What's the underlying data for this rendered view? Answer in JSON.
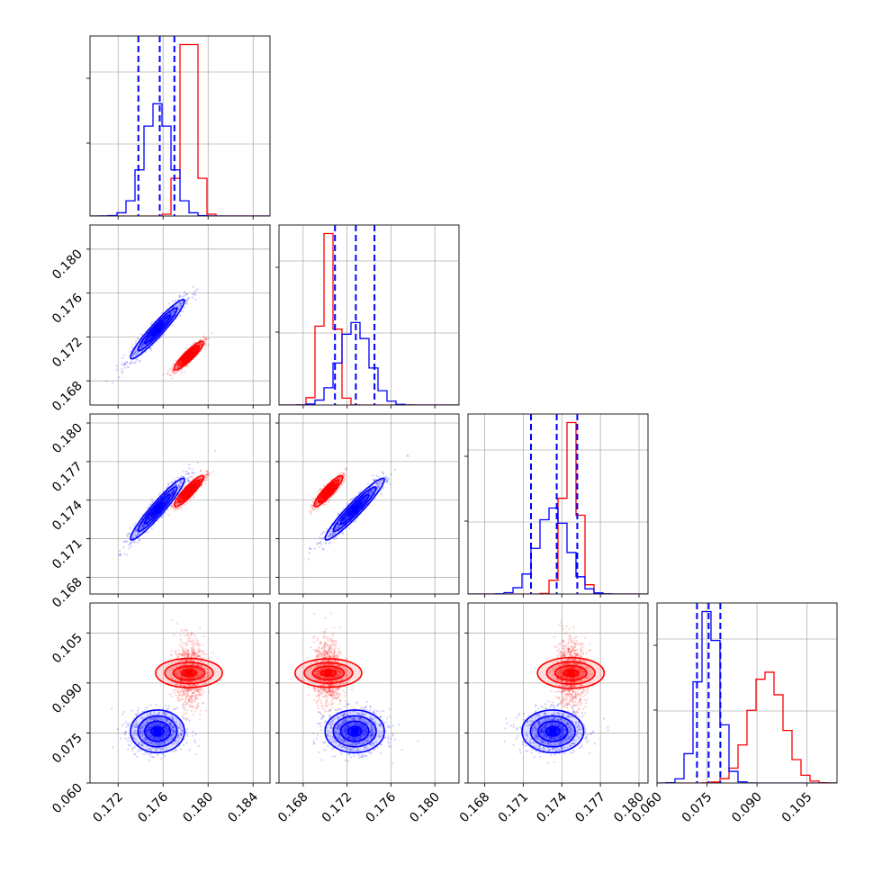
{
  "chart_data": {
    "type": "corner",
    "colors": {
      "red": "#ff0000",
      "blue": "#0000ff"
    },
    "parameters": [
      {
        "range": [
          0.1695,
          0.1855
        ],
        "ticks": [
          "0.172",
          "0.176",
          "0.180",
          "0.184"
        ],
        "tick_values": [
          0.172,
          0.176,
          0.18,
          0.184
        ],
        "quantiles_blue": [
          0.1738,
          0.1757,
          0.177
        ]
      },
      {
        "range": [
          0.1658,
          0.1822
        ],
        "ticks": [
          "0.168",
          "0.172",
          "0.176",
          "0.180"
        ],
        "tick_values": [
          0.168,
          0.172,
          0.176,
          0.18
        ],
        "quantiles_blue": [
          0.1709,
          0.1728,
          0.1745
        ]
      },
      {
        "range": [
          0.1667,
          0.1807
        ],
        "ticks": [
          "0.168",
          "0.171",
          "0.174",
          "0.177",
          "0.180"
        ],
        "tick_values": [
          0.168,
          0.171,
          0.174,
          0.177,
          0.18
        ],
        "quantiles_blue": [
          0.1716,
          0.1736,
          0.1752
        ]
      },
      {
        "range": [
          0.06,
          0.114
        ],
        "ticks": [
          "0.060",
          "0.075",
          "0.090",
          "0.105"
        ],
        "tick_values": [
          0.06,
          0.075,
          0.09,
          0.105
        ],
        "quantiles_blue": [
          0.072,
          0.0755,
          0.079
        ]
      }
    ],
    "series": [
      {
        "color": "red",
        "means": [
          0.1783,
          0.1703,
          0.1747,
          0.093
        ],
        "sds": [
          0.00065,
          0.00065,
          0.0006,
          0.005
        ],
        "corr": [
          [
            1,
            0.9,
            0.9,
            0
          ],
          [
            0.9,
            1,
            0.9,
            0
          ],
          [
            0.9,
            0.9,
            1,
            0
          ],
          [
            0,
            0,
            0,
            1
          ]
        ]
      },
      {
        "color": "blue",
        "means": [
          0.1755,
          0.1727,
          0.1733,
          0.0755
        ],
        "sds": [
          0.0012,
          0.00135,
          0.0012,
          0.0032
        ],
        "corr": [
          [
            1,
            0.95,
            0.95,
            0
          ],
          [
            0.95,
            1,
            0.95,
            0
          ],
          [
            0.95,
            0.95,
            1,
            0
          ],
          [
            0,
            0,
            0,
            1
          ]
        ]
      }
    ],
    "ylabels_rows": [
      {
        "ticks": [
          "0.168",
          "0.172",
          "0.176",
          "0.180"
        ],
        "tick_values": [
          0.168,
          0.172,
          0.176,
          0.18
        ]
      },
      {
        "ticks": [
          "0.168",
          "0.171",
          "0.174",
          "0.177",
          "0.180"
        ],
        "tick_values": [
          0.168,
          0.171,
          0.174,
          0.177,
          0.18
        ]
      },
      {
        "ticks": [
          "0.060",
          "0.075",
          "0.090",
          "0.105"
        ],
        "tick_values": [
          0.06,
          0.075,
          0.09,
          0.105
        ]
      }
    ]
  }
}
